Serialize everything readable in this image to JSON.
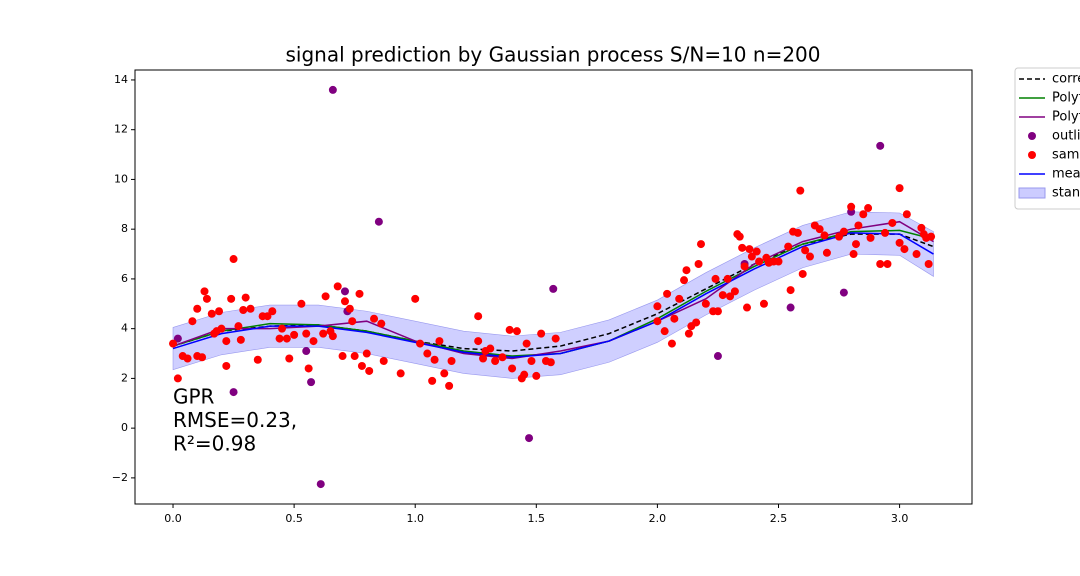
{
  "chart_data": {
    "type": "line",
    "title": "signal prediction by Gaussian process S/N=10 n=200",
    "annotation": [
      "GPR",
      "RMSE=0.23,",
      "R²=0.98"
    ],
    "xlim": [
      -0.157,
      3.299
    ],
    "ylim": [
      -3.05,
      14.4
    ],
    "xticks": [
      {
        "value": 0,
        "label": "0.0"
      },
      0.5,
      {
        "value": 1,
        "label": "1.0"
      },
      1.5,
      {
        "value": 2,
        "label": "2.0"
      },
      2.5,
      {
        "value": 3,
        "label": "3.0"
      }
    ],
    "yticks": [
      {
        "value": -2,
        "label": "−2"
      },
      0,
      2,
      4,
      6,
      8,
      10,
      12,
      14
    ],
    "x": [
      0,
      0.2,
      0.4,
      0.6,
      0.8,
      1.0,
      1.2,
      1.4,
      1.6,
      1.8,
      2.0,
      2.2,
      2.4,
      2.6,
      2.8,
      3.0,
      3.14
    ],
    "series": [
      {
        "name": "corre",
        "style": "dashed",
        "color": "#000000",
        "values": [
          3.3,
          3.9,
          4.1,
          4.15,
          3.9,
          3.5,
          3.2,
          3.1,
          3.3,
          3.8,
          4.6,
          5.6,
          6.6,
          7.4,
          7.8,
          7.8,
          7.3
        ]
      },
      {
        "name": "Polyf",
        "style": "solid",
        "color": "#008000",
        "values": [
          3.3,
          3.9,
          4.2,
          4.15,
          3.9,
          3.5,
          3.1,
          2.9,
          3.0,
          3.5,
          4.4,
          5.5,
          6.5,
          7.4,
          7.9,
          7.95,
          7.6
        ]
      },
      {
        "name": "Polyf",
        "style": "solid",
        "color": "#800080",
        "values": [
          3.3,
          4.0,
          4.0,
          4.1,
          4.3,
          3.5,
          3.0,
          2.8,
          3.1,
          3.5,
          4.3,
          5.2,
          6.6,
          7.5,
          8.0,
          8.3,
          7.5
        ]
      },
      {
        "name": "outlie",
        "style": "scatter",
        "color": "#800080",
        "x": [
          0.02,
          0.25,
          0.55,
          0.57,
          0.61,
          0.66,
          0.71,
          0.72,
          0.85,
          1.47,
          1.57,
          2.25,
          2.36,
          2.55,
          2.77,
          2.8,
          2.92
        ],
        "values": [
          3.6,
          1.45,
          3.1,
          1.85,
          -2.25,
          13.6,
          5.5,
          4.7,
          8.3,
          -0.4,
          5.6,
          2.9,
          6.6,
          4.85,
          5.45,
          8.7,
          11.35
        ]
      },
      {
        "name": "samp",
        "style": "scatter",
        "color": "#ff0000",
        "x": [
          0.0,
          0.02,
          0.04,
          0.06,
          0.08,
          0.1,
          0.1,
          0.12,
          0.13,
          0.14,
          0.16,
          0.17,
          0.18,
          0.19,
          0.2,
          0.22,
          0.22,
          0.24,
          0.25,
          0.27,
          0.28,
          0.29,
          0.3,
          0.32,
          0.35,
          0.37,
          0.39,
          0.41,
          0.44,
          0.45,
          0.47,
          0.48,
          0.5,
          0.53,
          0.55,
          0.56,
          0.58,
          0.62,
          0.63,
          0.65,
          0.66,
          0.68,
          0.7,
          0.71,
          0.73,
          0.74,
          0.75,
          0.77,
          0.78,
          0.8,
          0.81,
          0.83,
          0.86,
          0.87,
          0.94,
          1.0,
          1.02,
          1.05,
          1.07,
          1.08,
          1.1,
          1.12,
          1.14,
          1.15,
          1.26,
          1.26,
          1.28,
          1.29,
          1.31,
          1.33,
          1.36,
          1.39,
          1.4,
          1.42,
          1.44,
          1.45,
          1.46,
          1.48,
          1.5,
          1.52,
          1.54,
          1.56,
          1.58,
          2.0,
          2.0,
          2.03,
          2.04,
          2.06,
          2.07,
          2.09,
          2.11,
          2.12,
          2.13,
          2.14,
          2.16,
          2.17,
          2.18,
          2.2,
          2.23,
          2.24,
          2.25,
          2.27,
          2.29,
          2.3,
          2.32,
          2.33,
          2.34,
          2.35,
          2.36,
          2.37,
          2.38,
          2.39,
          2.41,
          2.42,
          2.44,
          2.45,
          2.46,
          2.48,
          2.5,
          2.54,
          2.55,
          2.56,
          2.58,
          2.59,
          2.6,
          2.61,
          2.63,
          2.65,
          2.67,
          2.69,
          2.7,
          2.75,
          2.77,
          2.8,
          2.81,
          2.82,
          2.83,
          2.85,
          2.87,
          2.88,
          2.92,
          2.94,
          2.95,
          2.97,
          3.0,
          3.0,
          3.02,
          3.03,
          3.07,
          3.09,
          3.1,
          3.11,
          3.12,
          3.13
        ],
        "values": [
          3.4,
          2.0,
          2.9,
          2.8,
          4.3,
          2.9,
          4.8,
          2.85,
          5.5,
          5.2,
          4.6,
          3.8,
          3.9,
          4.7,
          4.0,
          3.5,
          2.5,
          5.2,
          6.8,
          4.1,
          3.55,
          4.75,
          5.25,
          4.8,
          2.75,
          4.5,
          4.5,
          4.7,
          3.6,
          4.0,
          3.6,
          2.8,
          3.75,
          5.0,
          3.8,
          2.4,
          3.5,
          3.8,
          5.3,
          3.9,
          3.7,
          5.7,
          2.9,
          5.1,
          4.8,
          4.3,
          2.9,
          5.4,
          2.5,
          3.0,
          2.3,
          4.4,
          4.2,
          2.7,
          2.2,
          5.2,
          3.4,
          3.0,
          1.9,
          2.75,
          3.5,
          2.2,
          1.7,
          2.7,
          4.5,
          3.5,
          2.8,
          3.1,
          3.2,
          2.7,
          2.85,
          3.95,
          2.4,
          3.9,
          2.0,
          2.15,
          3.4,
          2.7,
          2.1,
          3.8,
          2.7,
          2.65,
          3.6,
          4.3,
          4.9,
          3.9,
          5.4,
          3.4,
          4.4,
          5.2,
          5.95,
          6.35,
          3.8,
          4.1,
          4.25,
          6.6,
          7.4,
          5.0,
          4.7,
          6.0,
          4.7,
          5.35,
          6.0,
          5.3,
          5.5,
          7.8,
          7.7,
          7.25,
          6.5,
          4.85,
          7.2,
          6.9,
          7.1,
          6.7,
          5.0,
          6.85,
          6.65,
          6.7,
          6.7,
          7.3,
          5.55,
          7.9,
          7.85,
          9.55,
          6.2,
          7.15,
          6.9,
          8.15,
          8.0,
          7.75,
          7.05,
          7.7,
          7.9,
          8.9,
          7.0,
          7.4,
          8.15,
          8.6,
          8.85,
          7.65,
          6.6,
          7.85,
          6.6,
          8.25,
          9.65,
          7.45,
          7.2,
          8.6,
          7.0,
          8.05,
          7.8,
          7.65,
          6.6,
          7.7
        ]
      },
      {
        "name": "mear",
        "style": "solid",
        "color": "#0000ff",
        "values": [
          3.2,
          3.8,
          4.1,
          4.1,
          3.85,
          3.45,
          3.05,
          2.85,
          3.0,
          3.5,
          4.3,
          5.4,
          6.4,
          7.3,
          7.85,
          7.8,
          7.0
        ]
      },
      {
        "name": "stand",
        "style": "band",
        "color": "#ccccff",
        "lower": [
          2.35,
          2.95,
          3.25,
          3.25,
          3.0,
          2.6,
          2.2,
          2.0,
          2.15,
          2.65,
          3.45,
          4.55,
          5.55,
          6.45,
          7.0,
          6.95,
          6.1
        ],
        "upper": [
          4.05,
          4.65,
          4.95,
          4.95,
          4.7,
          4.3,
          3.9,
          3.7,
          3.85,
          4.35,
          5.15,
          6.25,
          7.25,
          8.15,
          8.7,
          8.65,
          7.9
        ]
      }
    ]
  }
}
